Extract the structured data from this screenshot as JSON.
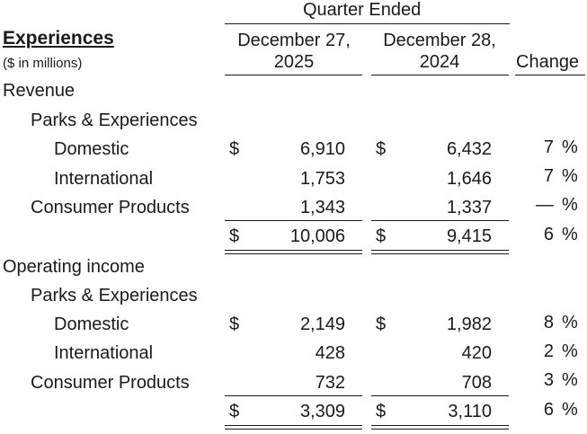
{
  "header": {
    "quarter_ended": "Quarter Ended",
    "section_title": "Experiences",
    "units": "($ in millions)",
    "col1_line1": "December 27,",
    "col1_line2": "2025",
    "col2_line1": "December 28,",
    "col2_line2": "2024",
    "change": "Change"
  },
  "revenue": {
    "label": "Revenue",
    "parks_label": "Parks & Experiences",
    "rows": [
      {
        "label": "Domestic",
        "cur_sym": "$",
        "cur": "6,910",
        "prior_sym": "$",
        "prior": "6,432",
        "change": "7",
        "pct": "%"
      },
      {
        "label": "International",
        "cur_sym": "",
        "cur": "1,753",
        "prior_sym": "",
        "prior": "1,646",
        "change": "7",
        "pct": "%"
      },
      {
        "label": "Consumer Products",
        "cur_sym": "",
        "cur": "1,343",
        "prior_sym": "",
        "prior": "1,337",
        "change": "—",
        "pct": "%"
      }
    ],
    "total": {
      "cur_sym": "$",
      "cur": "10,006",
      "prior_sym": "$",
      "prior": "9,415",
      "change": "6",
      "pct": "%"
    }
  },
  "operating_income": {
    "label": "Operating income",
    "parks_label": "Parks & Experiences",
    "rows": [
      {
        "label": "Domestic",
        "cur_sym": "$",
        "cur": "2,149",
        "prior_sym": "$",
        "prior": "1,982",
        "change": "8",
        "pct": "%"
      },
      {
        "label": "International",
        "cur_sym": "",
        "cur": "428",
        "prior_sym": "",
        "prior": "420",
        "change": "2",
        "pct": "%"
      },
      {
        "label": "Consumer Products",
        "cur_sym": "",
        "cur": "732",
        "prior_sym": "",
        "prior": "708",
        "change": "3",
        "pct": "%"
      }
    ],
    "total": {
      "cur_sym": "$",
      "cur": "3,309",
      "prior_sym": "$",
      "prior": "3,110",
      "change": "6",
      "pct": "%"
    }
  }
}
